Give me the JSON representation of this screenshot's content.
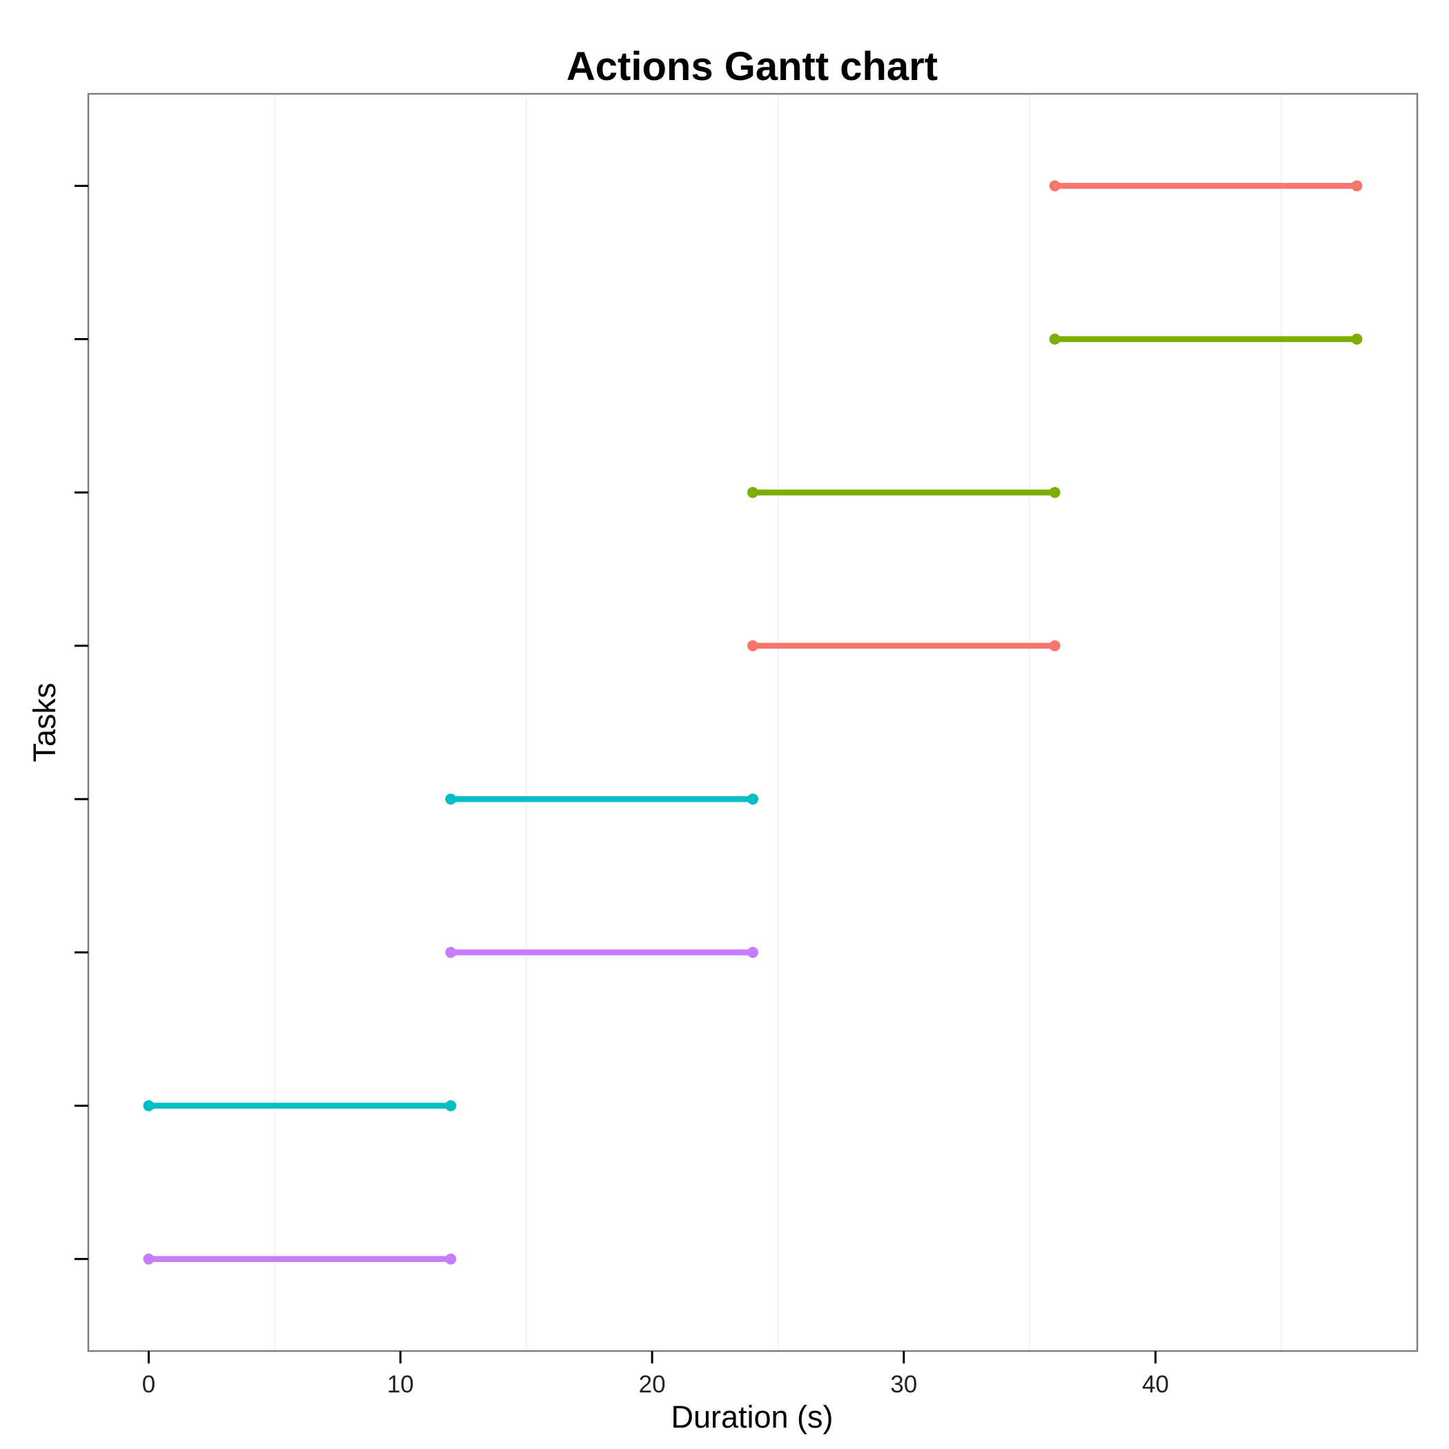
{
  "chart_data": {
    "type": "gantt",
    "title": "Actions Gantt chart",
    "xlabel": "Duration (s)",
    "ylabel": "Tasks",
    "xlim": [
      -2.4,
      50.4
    ],
    "xticks": [
      0,
      10,
      20,
      30,
      40
    ],
    "xtick_labels": [
      "0",
      "10",
      "20",
      "30",
      "40"
    ],
    "y_categories": 8,
    "grid": "x-minor-only",
    "legend": "none",
    "colors": [
      "#F8766D",
      "#7CAE00",
      "#00BFC4",
      "#C77CFF"
    ],
    "tasks": [
      {
        "row": 1,
        "start": 0,
        "end": 12,
        "color": "#C77CFF"
      },
      {
        "row": 2,
        "start": 0,
        "end": 12,
        "color": "#00BFC4"
      },
      {
        "row": 3,
        "start": 12,
        "end": 24,
        "color": "#C77CFF"
      },
      {
        "row": 4,
        "start": 12,
        "end": 24,
        "color": "#00BFC4"
      },
      {
        "row": 5,
        "start": 24,
        "end": 36,
        "color": "#F8766D"
      },
      {
        "row": 6,
        "start": 24,
        "end": 36,
        "color": "#7CAE00"
      },
      {
        "row": 7,
        "start": 36,
        "end": 48,
        "color": "#7CAE00"
      },
      {
        "row": 8,
        "start": 36,
        "end": 48,
        "color": "#F8766D"
      }
    ]
  }
}
